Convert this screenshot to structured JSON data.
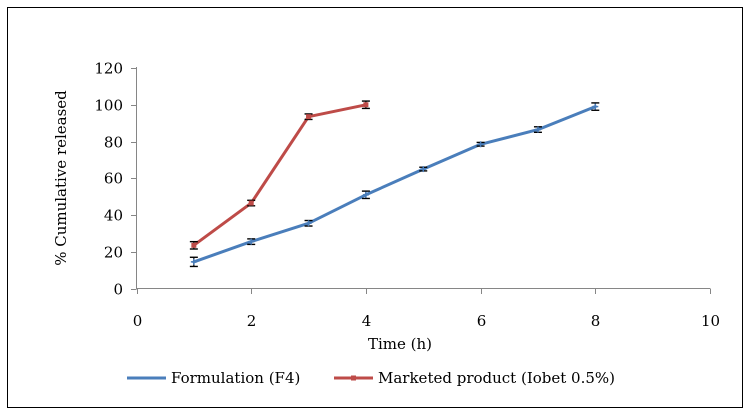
{
  "chart_data": {
    "type": "line",
    "title": "",
    "xlabel": "Time (h)",
    "ylabel": "% Cumulative released",
    "xlim": [
      0,
      10
    ],
    "ylim": [
      0,
      120
    ],
    "xticks": [
      0,
      2,
      4,
      6,
      8,
      10
    ],
    "yticks": [
      0,
      20,
      40,
      60,
      80,
      100,
      120
    ],
    "grid": false,
    "legend_position": "bottom",
    "series": [
      {
        "name": "Formulation (F4)",
        "color": "#4a7ebb",
        "marker": "plus",
        "x": [
          1,
          2,
          3,
          4,
          5,
          6,
          7,
          8
        ],
        "y": [
          14.5,
          25.5,
          35.5,
          51.0,
          65.0,
          78.5,
          86.5,
          99.0
        ],
        "error": [
          2.5,
          1.5,
          1.5,
          2.0,
          1.0,
          1.0,
          1.5,
          2.0
        ]
      },
      {
        "name": "Marketed product (Iobet 0.5%)",
        "color": "#be4b48",
        "marker": "square",
        "x": [
          1,
          2,
          3,
          4
        ],
        "y": [
          23.5,
          46.5,
          93.5,
          100.0
        ],
        "error": [
          2.0,
          1.5,
          1.5,
          2.0
        ]
      }
    ]
  }
}
